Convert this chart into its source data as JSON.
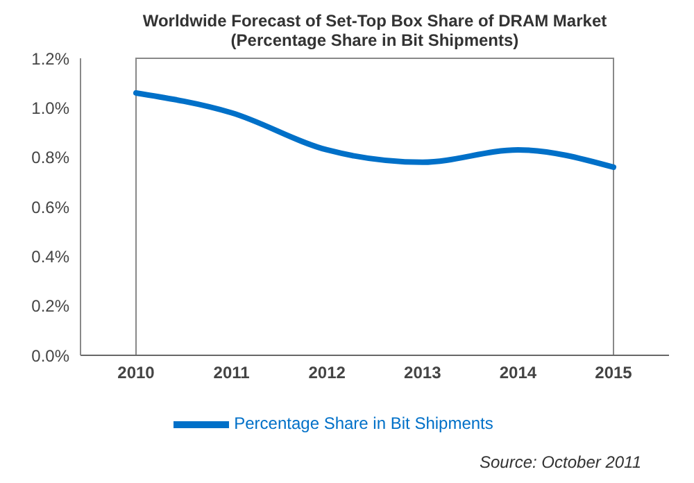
{
  "chart_data": {
    "type": "line",
    "title": "Worldwide Forecast of Set-Top Box Share of DRAM Market",
    "subtitle": "(Percentage Share in Bit Shipments)",
    "categories": [
      "2010",
      "2011",
      "2012",
      "2013",
      "2014",
      "2015"
    ],
    "series": [
      {
        "name": "Percentage Share in Bit Shipments",
        "color": "#0070c8",
        "values": [
          1.06,
          0.98,
          0.83,
          0.78,
          0.83,
          0.76
        ]
      }
    ],
    "ylim": [
      0,
      1.2
    ],
    "yticks": [
      {
        "value": 0,
        "label": "0.0%"
      },
      {
        "value": 0.2,
        "label": "0.2%"
      },
      {
        "value": 0.4,
        "label": "0.4%"
      },
      {
        "value": 0.6,
        "label": "0.6%"
      },
      {
        "value": 0.8,
        "label": "0.8%"
      },
      {
        "value": 1.0,
        "label": "1.0%"
      },
      {
        "value": 1.2,
        "label": "1.2%"
      }
    ],
    "grid": false,
    "legend": "bottom",
    "marker": "none",
    "line_style": "solid",
    "annotations": [
      "Source: October 2011"
    ]
  }
}
